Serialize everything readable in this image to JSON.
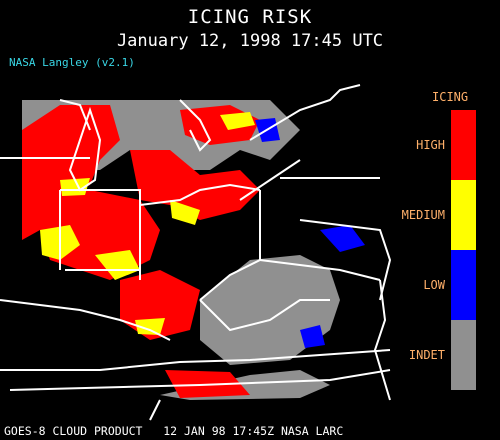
{
  "header": {
    "title": "ICING RISK",
    "datetime": "January 12, 1998 17:45 UTC",
    "credit": "NASA Langley (v2.1)"
  },
  "legend": {
    "title": "ICING",
    "items": [
      {
        "label": "HIGH",
        "color": "#ff0000"
      },
      {
        "label": "MEDIUM",
        "color": "#ffff00"
      },
      {
        "label": "LOW",
        "color": "#0000ff"
      },
      {
        "label": "INDET",
        "color": "#909090"
      }
    ]
  },
  "footer": "GOES-8 CLOUD PRODUCT   12 JAN 98 17:45Z NASA LARC"
}
